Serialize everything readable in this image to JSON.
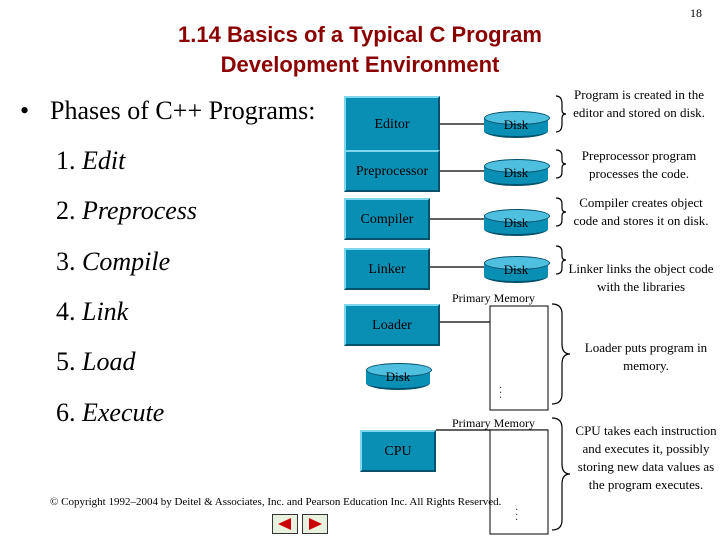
{
  "slide_number": "18",
  "title": {
    "line1": "1.14 Basics of a Typical C Program",
    "line2": "Development Environment"
  },
  "bullet": "Phases of C++ Programs:",
  "phases": [
    {
      "num": "1.",
      "label": "Edit"
    },
    {
      "num": "2.",
      "label": "Preprocess"
    },
    {
      "num": "3.",
      "label": "Compile"
    },
    {
      "num": "4.",
      "label": "Link"
    },
    {
      "num": "5.",
      "label": "Load"
    },
    {
      "num": "6.",
      "label": "Execute"
    }
  ],
  "diagram": {
    "editor": "Editor",
    "preprocessor": "Preprocessor",
    "compiler": "Compiler",
    "linker": "Linker",
    "loader": "Loader",
    "cpu": "CPU",
    "disk": "Disk",
    "primary_memory": "Primary Memory",
    "dots": ". . ."
  },
  "descriptions": {
    "editor": "Program is created in the editor and stored on disk.",
    "preprocessor": "Preprocessor program processes the code.",
    "compiler": "Compiler creates object code and stores it on disk.",
    "linker": "Linker links the object code with the libraries",
    "loader": "Loader puts program in memory.",
    "cpu": "CPU takes each instruction and executes it, possibly storing new data values as the program executes."
  },
  "footer": "© Copyright 1992–2004 by Deitel & Associates, Inc. and Pearson Education Inc. All Rights Reserved.",
  "colors": {
    "title": "#8b0000",
    "box": "#0a8fb4",
    "nav_arrow": "#cc0000"
  }
}
